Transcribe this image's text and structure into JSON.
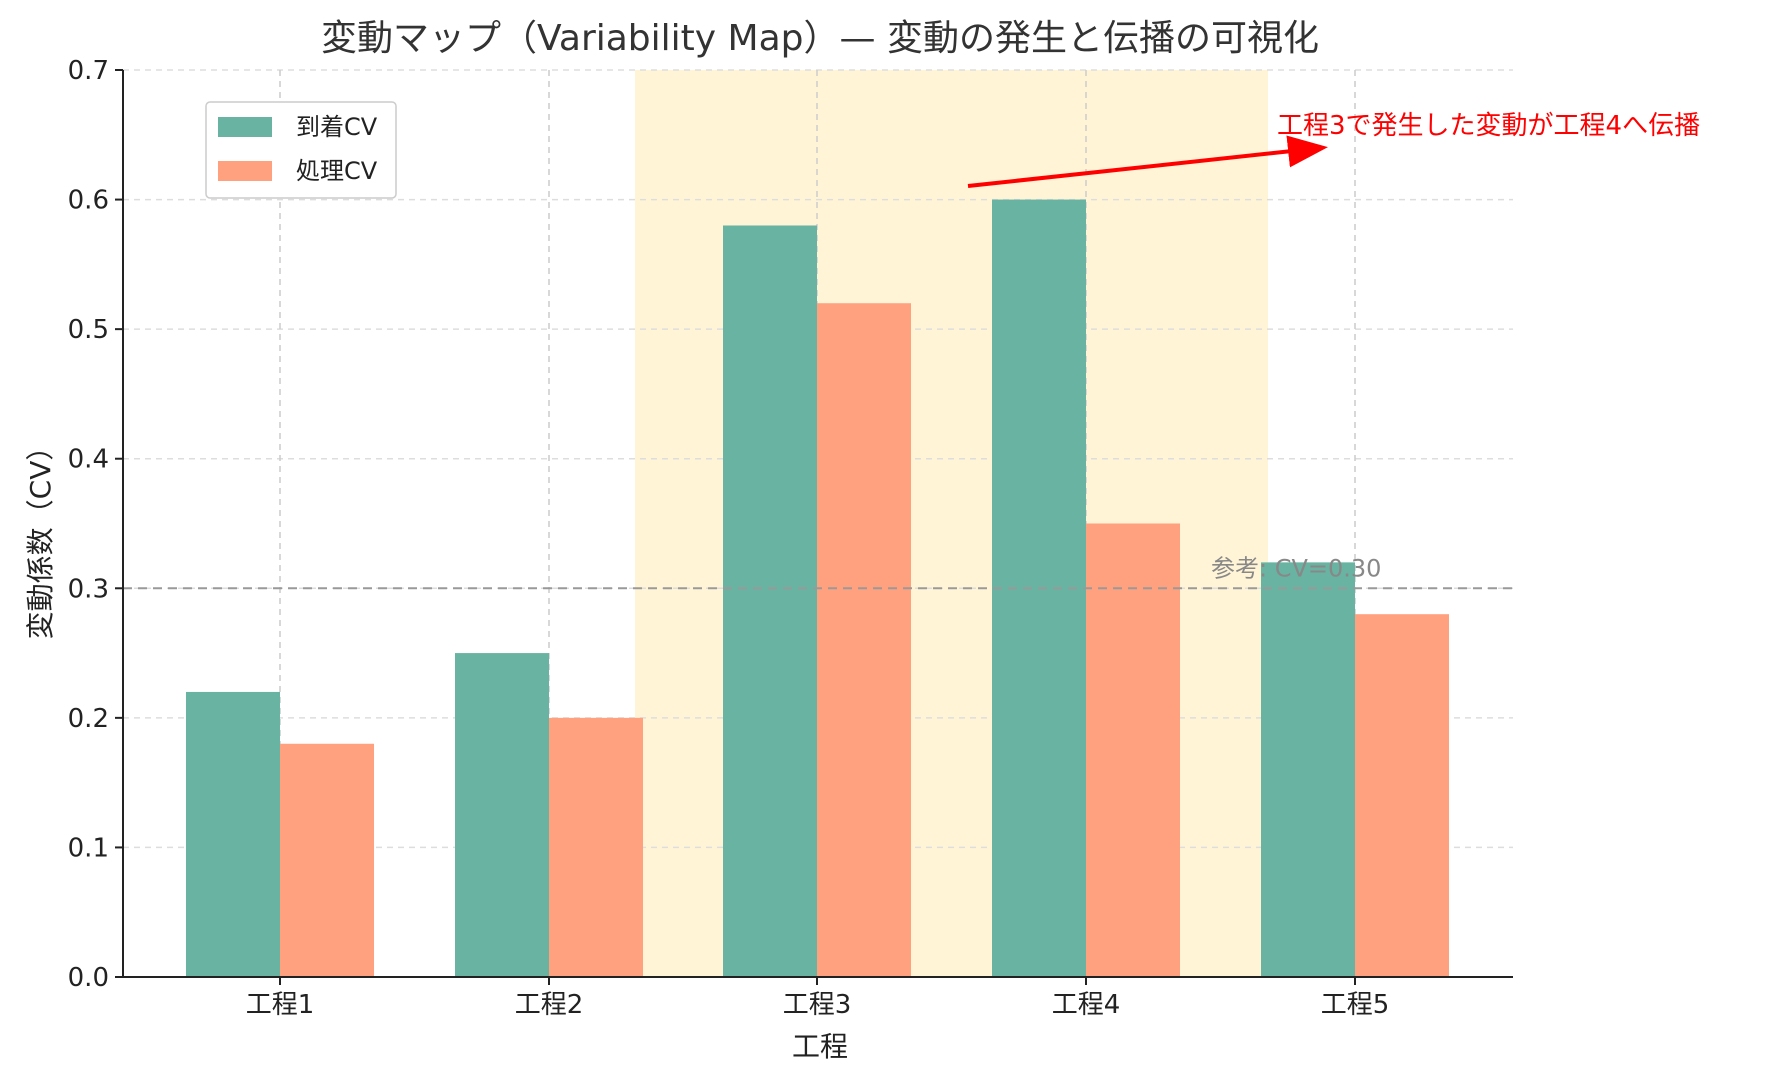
{
  "chart_data": {
    "type": "bar",
    "title": "変動マップ（Variability Map）— 変動の発生と伝播の可視化",
    "xlabel": "工程",
    "ylabel": "変動係数（CV）",
    "categories": [
      "工程1",
      "工程2",
      "工程3",
      "工程4",
      "工程5"
    ],
    "series": [
      {
        "name": "到着CV",
        "color": "#69b3a2",
        "values": [
          0.22,
          0.25,
          0.58,
          0.6,
          0.32
        ]
      },
      {
        "name": "処理CV",
        "color": "#ffa07f",
        "values": [
          0.18,
          0.2,
          0.52,
          0.35,
          0.28
        ]
      }
    ],
    "ylim": [
      0,
      0.7
    ],
    "yticks": [
      "0.0",
      "0.1",
      "0.2",
      "0.3",
      "0.4",
      "0.5",
      "0.6",
      "0.7"
    ],
    "grid": true,
    "legend_position": "top-left",
    "highlight": {
      "from_category": "工程3",
      "to_category": "工程4",
      "color": "#fff4d6"
    },
    "reference_line": {
      "value": 0.3,
      "label": "参考: CV=0.30",
      "color": "#999999"
    },
    "annotation": {
      "text": "工程3で発生した変動が工程4へ伝播",
      "color": "#ff0000"
    }
  }
}
